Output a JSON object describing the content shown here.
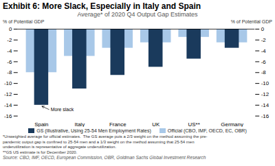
{
  "chart_data": {
    "type": "bar",
    "title": "Exhibit 6: More Slack, Especially in Italy and Spain",
    "subtitle": "Average* of 2020 Q4 Output Gap Estimates",
    "ylabel": "% of Potential GDP",
    "y2label": "% of Potential GDP",
    "categories": [
      "Spain",
      "Italy",
      "France",
      "UK",
      "US**",
      "Germany"
    ],
    "series": [
      {
        "name": "GS (Illustrative, Using 25-54 Men Employment Rates)",
        "color": "#1a3a5c",
        "values": [
          -14.0,
          -11.0,
          -8.5,
          -7.0,
          -5.5,
          -3.5
        ]
      },
      {
        "name": "Official (CBO, IMF, OECD, EC, OBR)",
        "color": "#a8c8e8",
        "values": [
          -8.0,
          -5.0,
          -3.5,
          -2.5,
          -1.5,
          -2.5
        ]
      }
    ],
    "ylim": [
      -16,
      0
    ],
    "yticks": [
      0,
      -2,
      -4,
      -6,
      -8,
      -10,
      -12,
      -14,
      -16
    ],
    "y2lim": [
      -16,
      0
    ],
    "y2ticks": [
      0,
      -2,
      -4,
      -6,
      -8,
      -10,
      -12,
      -14,
      -16
    ],
    "legend": "bottom",
    "annotation": "More slack",
    "footnote": "*Unweighted average for official estimates.  The GS average puts a 2/3 weight on the method assuming the pre-\npandemic output gap is confined to 25-54 men and a 1/3 weight on the method assuming that 25-54 men\nunderutilization is representative of aggregate underutilization.\n**GS US estimate is for December 2020.",
    "source": "Source: CBO, IMF, OECD, European Commission, OBR, Goldman Sachs Global Investment Research"
  }
}
